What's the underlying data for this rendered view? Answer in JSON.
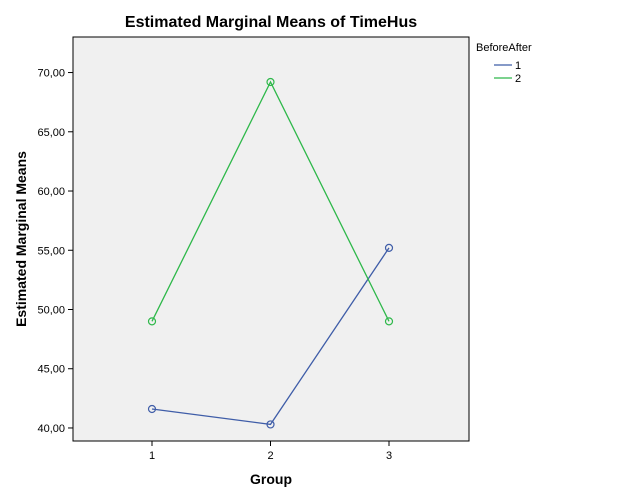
{
  "chart_data": {
    "type": "line",
    "title": "Estimated Marginal Means of TimeHus",
    "xlabel": "Group",
    "ylabel": "Estimated Marginal Means",
    "categories": [
      "1",
      "2",
      "3"
    ],
    "y_ticks": [
      "40,00",
      "45,00",
      "50,00",
      "55,00",
      "60,00",
      "65,00",
      "70,00"
    ],
    "y_tick_values": [
      40,
      45,
      50,
      55,
      60,
      65,
      70
    ],
    "ylim": [
      38.9,
      73.0
    ],
    "legend": {
      "title": "BeforeAfter",
      "placement": "top-right-outside"
    },
    "grid": false,
    "series": [
      {
        "name": "1",
        "color": "#3F5DA8",
        "values": [
          41.6,
          40.3,
          55.2
        ]
      },
      {
        "name": "2",
        "color": "#2EB84A",
        "values": [
          49.0,
          69.2,
          49.0
        ]
      }
    ]
  }
}
